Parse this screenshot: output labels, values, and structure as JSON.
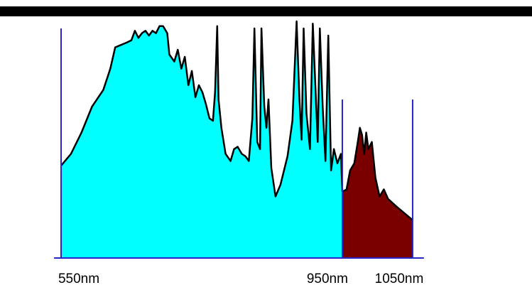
{
  "chart_data": {
    "type": "area",
    "xlim": [
      540,
      1066
    ],
    "ylim": [
      0,
      100
    ],
    "xticks": [
      {
        "value": 550,
        "label": "550nm"
      },
      {
        "value": 950,
        "label": "950nm"
      },
      {
        "value": 1050,
        "label": "1050nm"
      }
    ],
    "line_color": "#000000",
    "tick_color": "#2626c8",
    "series": [
      {
        "color": "#00ffff",
        "x": [
          550,
          564,
          579,
          594,
          610,
          620,
          627,
          635,
          643,
          650,
          655,
          660,
          665,
          670,
          675,
          680,
          685,
          690,
          695,
          701,
          704,
          711,
          716,
          721,
          726,
          731,
          736,
          741,
          746,
          751,
          756,
          761,
          766,
          769,
          772,
          774,
          778,
          784,
          791,
          796,
          801,
          807,
          812,
          817,
          822,
          825,
          829,
          833,
          835,
          839,
          842,
          845,
          849,
          855,
          862,
          872,
          879,
          885,
          889,
          892,
          895,
          899,
          904,
          908,
          912,
          915,
          918,
          922,
          926,
          930,
          934,
          938,
          943,
          948,
          950
        ],
        "values": [
          39,
          44,
          53,
          64,
          71,
          80,
          89,
          90,
          91,
          92,
          96,
          93,
          95,
          96,
          94,
          96,
          95,
          98,
          98,
          95,
          86,
          83,
          88,
          80,
          85,
          73,
          79,
          68,
          73,
          70,
          65,
          59,
          58,
          70,
          98,
          67,
          55,
          44,
          41,
          46,
          47,
          44,
          43,
          41,
          59,
          97,
          49,
          46,
          97,
          64,
          55,
          67,
          38,
          26,
          31,
          43,
          58,
          100,
          67,
          50,
          97,
          61,
          46,
          99,
          70,
          49,
          97,
          64,
          41,
          94,
          37,
          46,
          40,
          44,
          28
        ]
      },
      {
        "color": "#7a0000",
        "x": [
          950,
          956,
          961,
          967,
          972,
          975,
          978,
          981,
          984,
          987,
          992,
          997,
          1003,
          1009,
          1015,
          1026,
          1038,
          1050
        ],
        "values": [
          28,
          29,
          37,
          40,
          49,
          55,
          52,
          44,
          53,
          46,
          49,
          34,
          26,
          29,
          25,
          22,
          19,
          16
        ]
      }
    ]
  }
}
